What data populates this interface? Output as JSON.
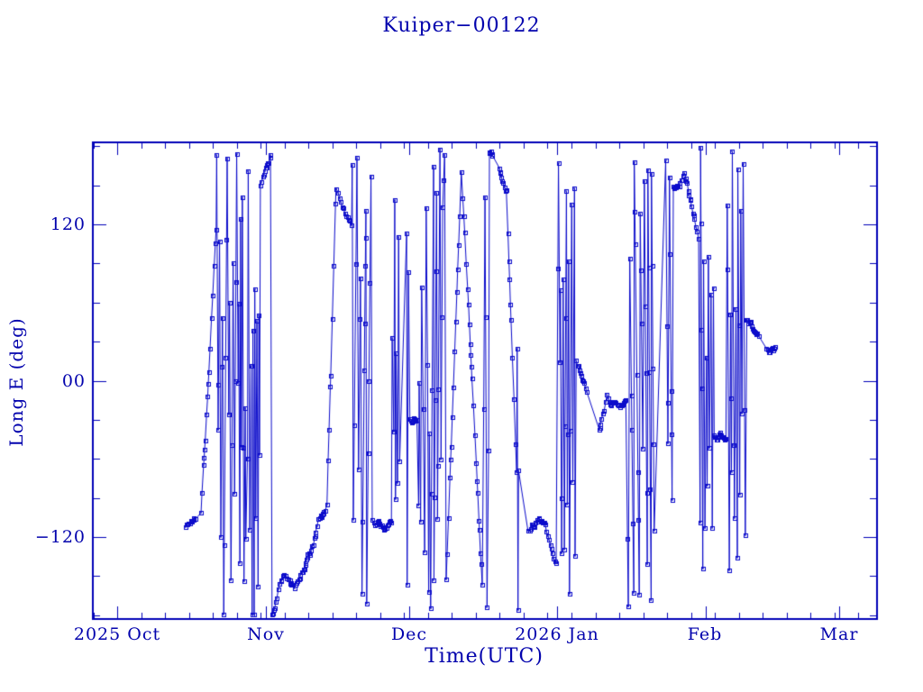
{
  "title": "Kuiper−00122",
  "colors": {
    "ink": "#0202AD",
    "frame": "#0000B8",
    "data_line": "#0B0BCB",
    "background": "#FFFFFF"
  },
  "chart_data": {
    "type": "line",
    "title": "Kuiper−00122",
    "xlabel": "Time(UTC)",
    "ylabel": "Long E (deg)",
    "x_tick_labels": [
      "2025 Oct",
      "Nov",
      "Dec",
      "2026 Jan",
      "Feb",
      "Mar"
    ],
    "x_major_days": [
      0,
      31,
      61,
      92,
      123,
      151
    ],
    "x_minor_step_days": 5,
    "xlim_days": [
      -5.1,
      158.9
    ],
    "x_epoch": "days measured from 2025-10-01",
    "y_tick_labels": [
      "120",
      "00",
      "−120"
    ],
    "y_tick_values": [
      120,
      0,
      -120
    ],
    "y_minor_step": 30,
    "ylim": [
      -183,
      183
    ],
    "grid": false,
    "legend": "none",
    "marker": "open-square-with-center-dot",
    "marker_size_px": 5,
    "line_color": "#0B0BCB",
    "series_description": "East longitude of object Kuiper-00122 vs UTC time; samples every few hours from ~2025-10-15 to ~2026-02-15, wrapping between -180 and +180 deg so fast drift draws near-vertical wrap lines; occasional slow-drift intervals form short diagonal stair tracks.",
    "data_time_span_days": [
      14.2,
      137.6
    ],
    "synthesis": {
      "seed": 1337,
      "t_start_day": 14.2,
      "t_end_day": 137.6,
      "dt_min": 0.06,
      "dt_spread": 0.3,
      "gap_prob": 0.015,
      "gap_min": 0.8,
      "gap_spread": 1.8,
      "p_slow": 0.3,
      "slow_max": 18,
      "p_medium": 0.15,
      "med_min": 40,
      "med_max": 140,
      "fast_min": 260,
      "fast_max": 950,
      "regime_min": 1.2,
      "regime_max": 4.5,
      "jitter": 2.5
    }
  }
}
